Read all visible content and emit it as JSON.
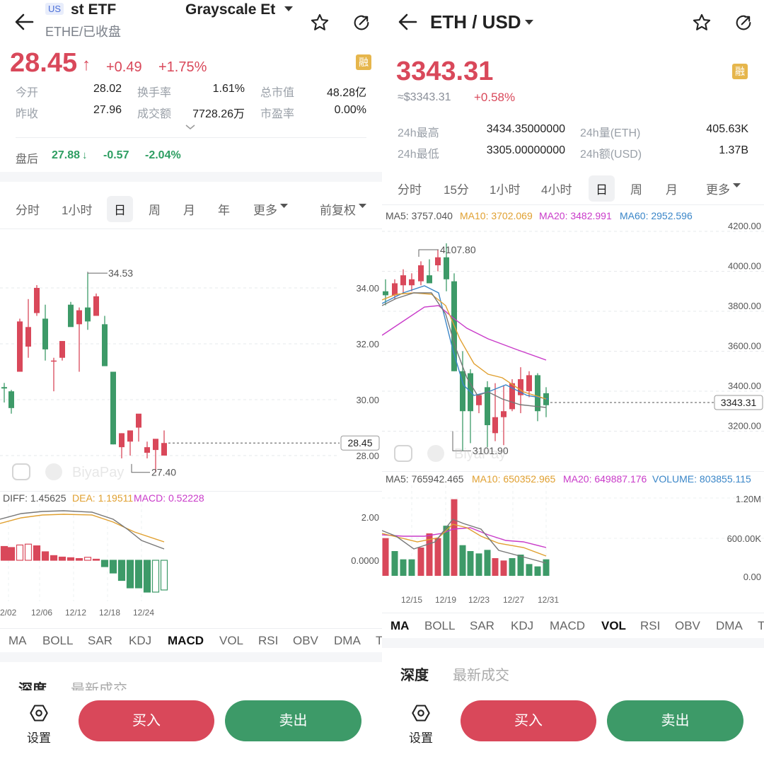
{
  "left": {
    "header": {
      "badge": "US",
      "title": "st ETF",
      "title_right": "Grayscale Et",
      "subtitle": "ETHE/已收盘"
    },
    "quote": {
      "price": "28.45",
      "arrow": "↑",
      "change": "+0.49",
      "change_pct": "+1.75%",
      "margin_tag": "融"
    },
    "stats": {
      "open_label": "今开",
      "open": "28.02",
      "turnover_label": "换手率",
      "turnover": "1.61%",
      "mktcap_label": "总市值",
      "mktcap": "48.28亿",
      "prev_label": "昨收",
      "prev": "27.96",
      "amount_label": "成交额",
      "amount": "7728.26万",
      "pe_label": "市盈率",
      "pe": "0.00%"
    },
    "after_hours": {
      "label": "盘后",
      "price": "27.88",
      "arrow": "↓",
      "change": "-0.57",
      "change_pct": "-2.04%"
    },
    "tabs": [
      "分时",
      "1小时",
      "日",
      "周",
      "月",
      "年",
      "更多"
    ],
    "adjust": "前复权",
    "chart": {
      "y_ticks": [
        "34.00",
        "32.00",
        "30.00",
        "28.00"
      ],
      "high_label": "34.53",
      "low_label": "27.40",
      "last_price": "28.45",
      "watermark": "BiyaPay"
    },
    "macd": {
      "diff": "DIFF: 1.45625",
      "dea": "DEA: 1.19511",
      "macd": "MACD: 0.52228",
      "y_ticks": [
        "2.00",
        "0.0000"
      ],
      "dates": [
        "2/02",
        "12/06",
        "12/12",
        "12/18",
        "12/24"
      ]
    },
    "indicators": [
      "MA",
      "BOLL",
      "SAR",
      "KDJ",
      "MACD",
      "VOL",
      "RSI",
      "OBV",
      "DMA",
      "T"
    ],
    "bottom_tabs": [
      "深度",
      "最新成交"
    ],
    "settings": "设置",
    "buy": "买入",
    "sell": "卖出"
  },
  "right": {
    "header": {
      "title": "ETH / USD"
    },
    "quote": {
      "price": "3343.31",
      "approx": "≈$3343.31",
      "change_pct": "+0.58%",
      "margin_tag": "融"
    },
    "stats": {
      "high_label": "24h最高",
      "high": "3434.35000000",
      "vol_label": "24h量(ETH)",
      "vol": "405.63K",
      "low_label": "24h最低",
      "low": "3305.00000000",
      "amt_label": "24h额(USD)",
      "amt": "1.37B"
    },
    "tabs": [
      "分时",
      "15分",
      "1小时",
      "4小时",
      "日",
      "周",
      "月",
      "更多"
    ],
    "ma": {
      "ma5": "MA5: 3757.040",
      "ma10": "MA10: 3702.069",
      "ma20": "MA20: 3482.991",
      "ma60": "MA60: 2952.596"
    },
    "chart": {
      "y_ticks": [
        "4200.00",
        "4000.00",
        "3800.00",
        "3600.00",
        "3400.00",
        "3200.00"
      ],
      "high_label": "4107.80",
      "low_label": "3101.90",
      "last_price": "3343.31",
      "watermark": "BiyaPay"
    },
    "vol": {
      "ma5": "MA5: 765942.465",
      "ma10": "MA10: 650352.965",
      "ma20": "MA20: 649887.176",
      "volume": "VOLUME: 803855.115",
      "y_ticks": [
        "1.20M",
        "600.00K",
        "0.00"
      ],
      "dates": [
        "12/15",
        "12/19",
        "12/23",
        "12/27",
        "12/31"
      ]
    },
    "indicators": [
      "MA",
      "BOLL",
      "SAR",
      "KDJ",
      "MACD",
      "VOL",
      "RSI",
      "OBV",
      "DMA",
      "T"
    ],
    "bottom_tabs": [
      "深度",
      "最新成交"
    ],
    "settings": "设置",
    "buy": "买入",
    "sell": "卖出"
  },
  "colors": {
    "up": "#d9485a",
    "down": "#3d9a68",
    "ma5": "#555555",
    "ma10": "#e0a030",
    "ma20": "#c93bc9",
    "ma60": "#3a86c8"
  }
}
